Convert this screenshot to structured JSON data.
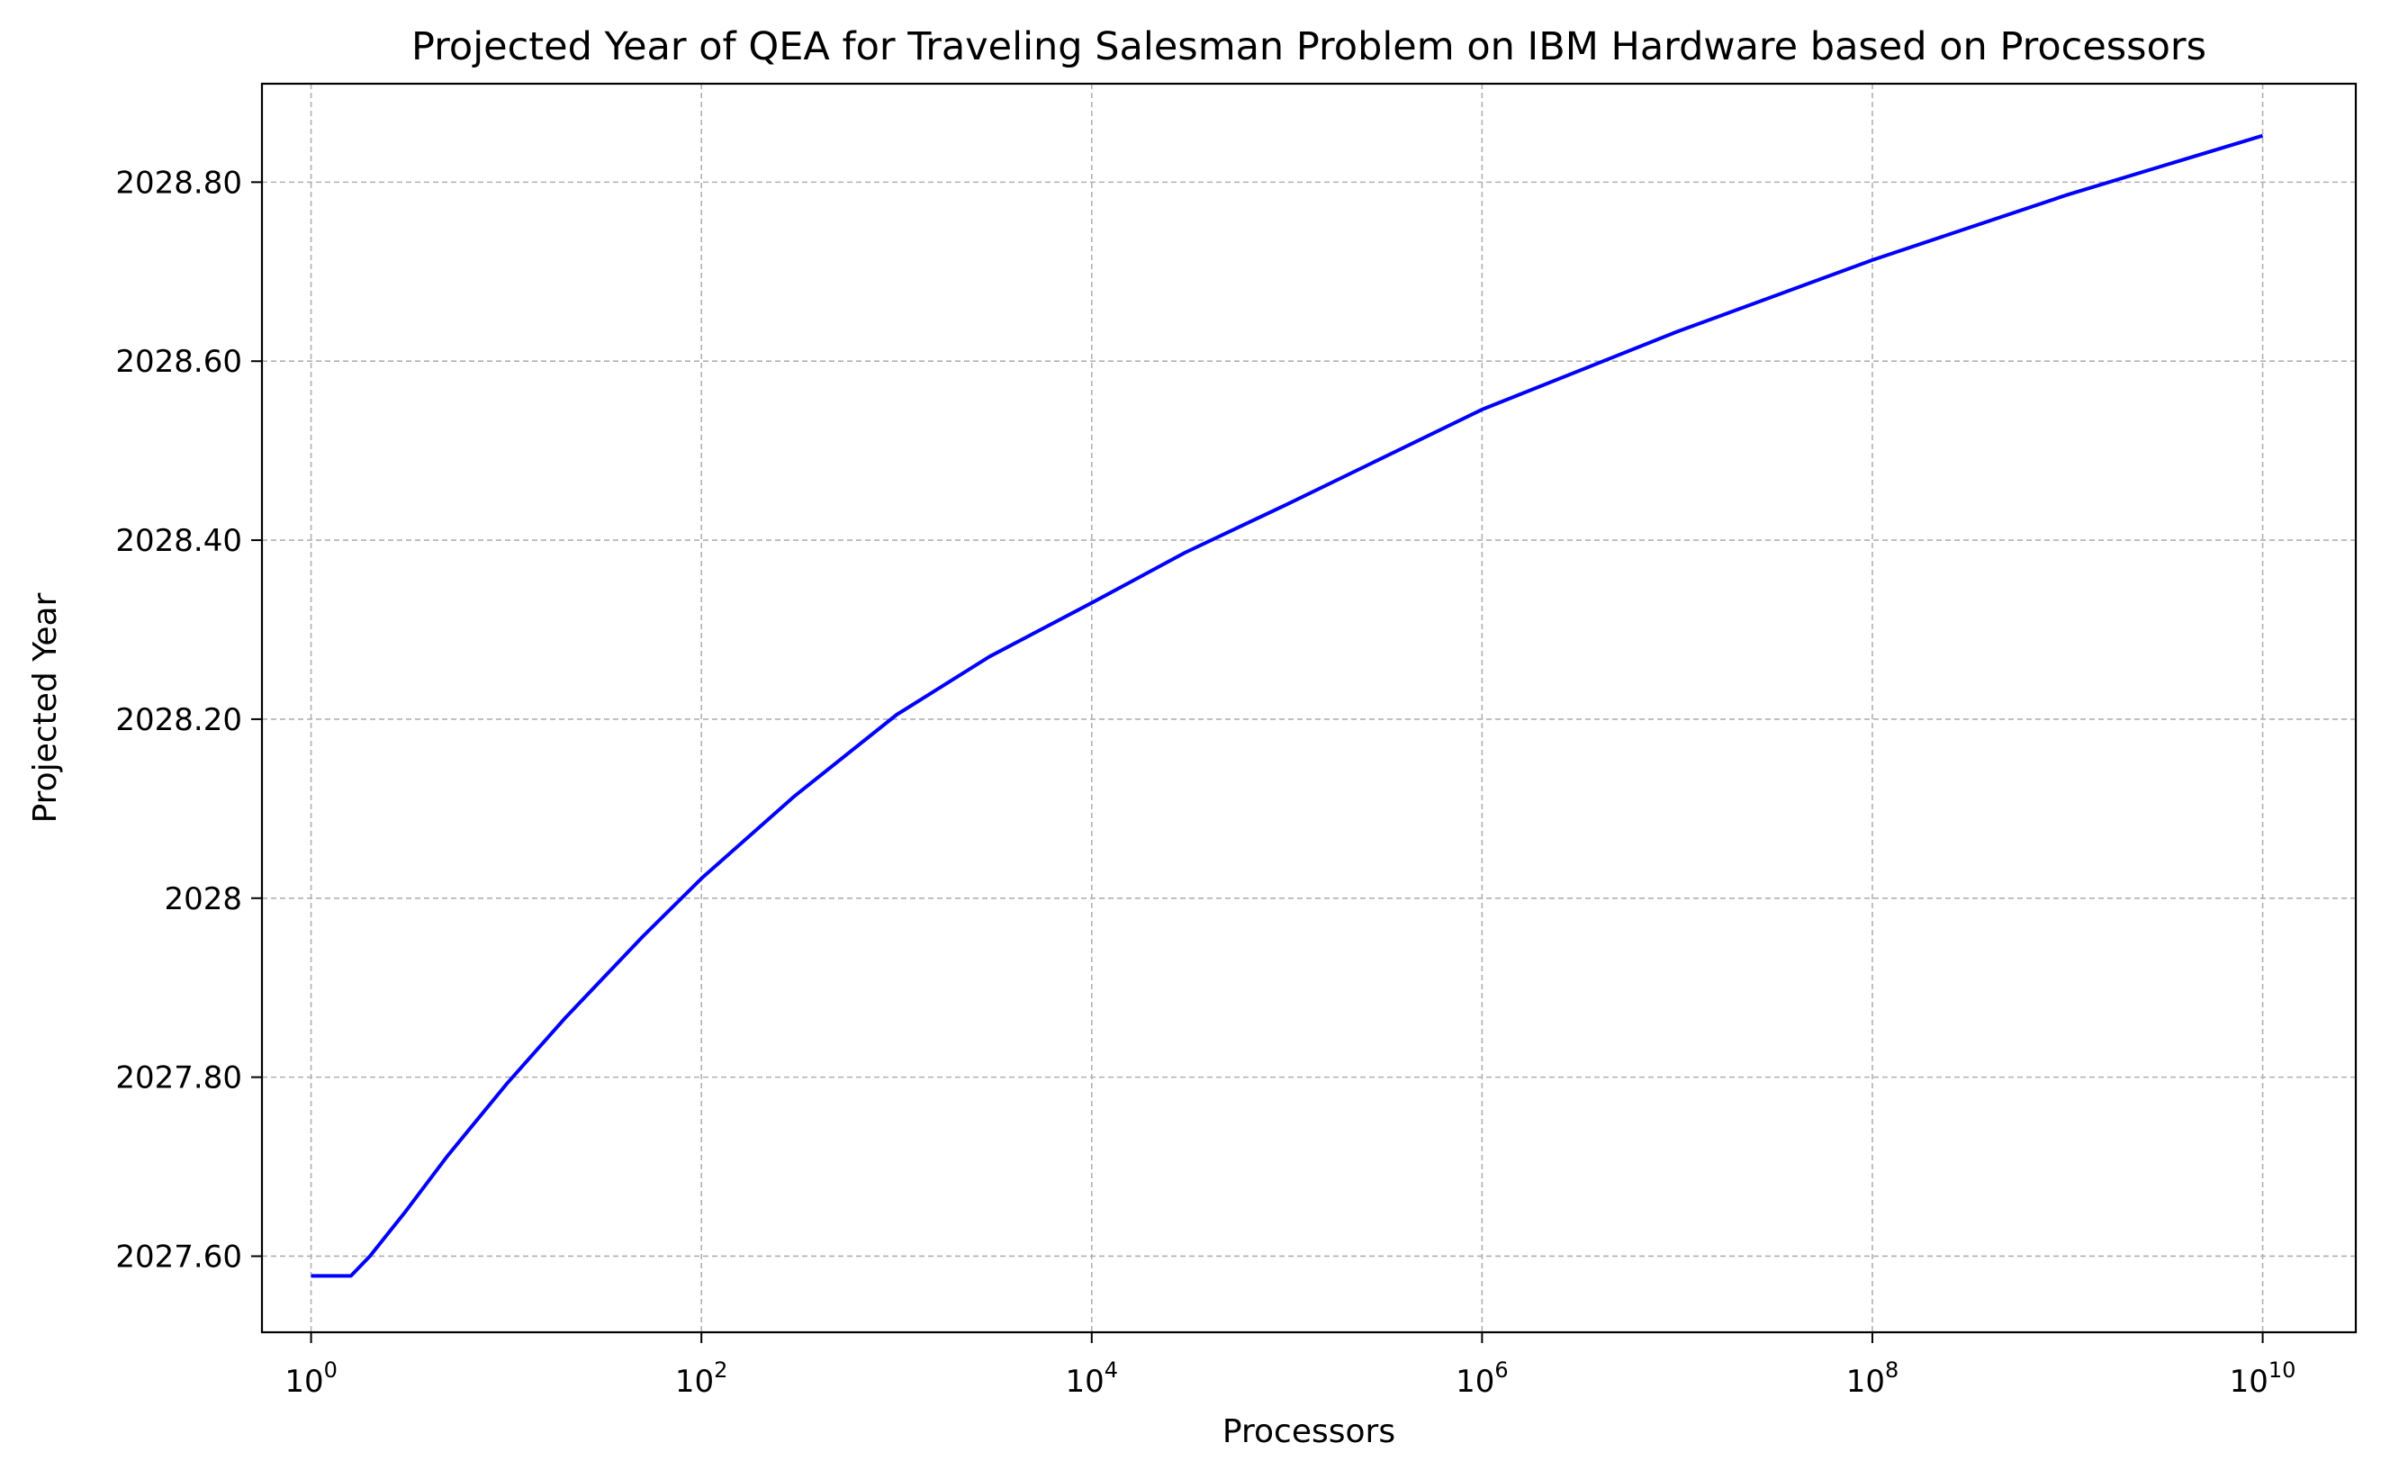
{
  "chart_data": {
    "type": "line",
    "title": "Projected Year of QEA for Traveling Salesman Problem on IBM Hardware based on Processors",
    "xlabel": "Processors",
    "ylabel": "Projected Year",
    "x_scale": "log",
    "xlim": [
      0.56,
      30000000000
    ],
    "ylim": [
      2027.515,
      2028.91
    ],
    "grid": true,
    "legend": "none",
    "x_ticks": [
      {
        "value": 1,
        "base": "10",
        "exp": "0"
      },
      {
        "value": 100,
        "base": "10",
        "exp": "2"
      },
      {
        "value": 10000,
        "base": "10",
        "exp": "4"
      },
      {
        "value": 1000000,
        "base": "10",
        "exp": "6"
      },
      {
        "value": 100000000,
        "base": "10",
        "exp": "8"
      },
      {
        "value": 10000000000,
        "base": "10",
        "exp": "10"
      }
    ],
    "y_ticks": [
      {
        "value": 2027.6,
        "label": "2027.60"
      },
      {
        "value": 2027.8,
        "label": "2027.80"
      },
      {
        "value": 2028.0,
        "label": "2028"
      },
      {
        "value": 2028.2,
        "label": "2028.20"
      },
      {
        "value": 2028.4,
        "label": "2028.40"
      },
      {
        "value": 2028.6,
        "label": "2028.60"
      },
      {
        "value": 2028.8,
        "label": "2028.80"
      }
    ],
    "series": [
      {
        "color": "#0000ff",
        "x": [
          1,
          1.6,
          2,
          3,
          5,
          10,
          20,
          50,
          100,
          300,
          1000,
          3000,
          10000,
          30000,
          100000,
          1000000,
          10000000,
          100000000,
          1000000000,
          10000000000
        ],
        "y": [
          2027.578,
          2027.578,
          2027.6,
          2027.648,
          2027.712,
          2027.792,
          2027.866,
          2027.957,
          2028.022,
          2028.114,
          2028.205,
          2028.27,
          2028.33,
          2028.386,
          2028.44,
          2028.546,
          2028.633,
          2028.713,
          2028.786,
          2028.852
        ]
      }
    ]
  }
}
